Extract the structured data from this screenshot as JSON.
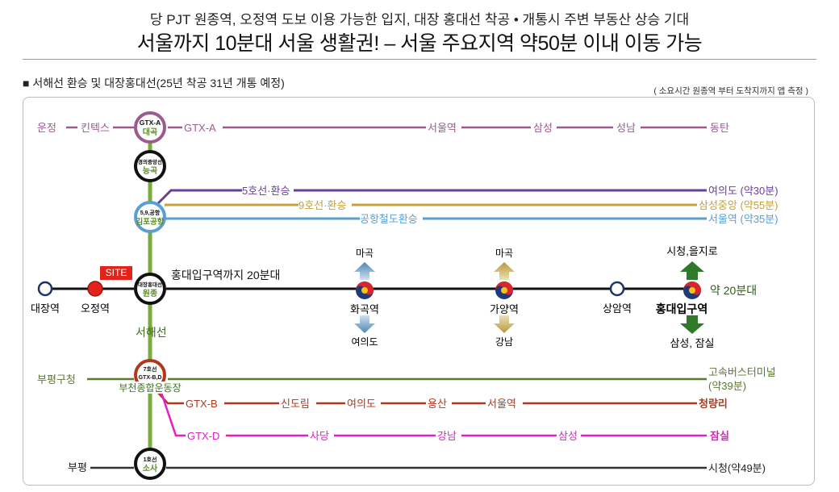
{
  "header": {
    "line1": "당 PJT 원종역, 오정역 도보 이용 가능한 입지, 대장 홍대선 착공 • 개통시 주변 부동산 상승 기대",
    "line2": "서울까지 10분대 서울 생활권! – 서울 주요지역 약50분 이내 이동 가능"
  },
  "section": {
    "title": "■ 서해선 환승 및 대장홍대선(25년 착공 31년 개통 예정)",
    "note": "( 소요시간 원종역 부터 도착지까지 앱 측정 )"
  },
  "hubs": {
    "daegok_top": "GTX-A",
    "daegok_bot": "대곡",
    "neunggok_top": "경의중앙선",
    "neunggok_bot": "능곡",
    "gimpo_top": "5,9,공항",
    "gimpo_bot": "김포공항",
    "wonjong_top": "대장홍대선",
    "wonjong_bot": "원종",
    "bucheon_top1": "7호선",
    "bucheon_top2": "GTX-B,D",
    "sosa_top": "1호선",
    "sosa_bot": "소사"
  },
  "lines": {
    "gtxa": {
      "left1": "운정",
      "left2": "킨텍스",
      "name": "GTX-A",
      "s1": "서울역",
      "s2": "삼성",
      "s3": "성남",
      "end": "동탄",
      "color": "#9b5b8f"
    },
    "l5": {
      "name": "5호선·환승",
      "end": "여의도 (약30분)",
      "color": "#6a3f9a"
    },
    "l9": {
      "name": "9호선·환승",
      "end": "삼성중앙 (약55분)",
      "color": "#c4a13d"
    },
    "airport": {
      "name": "공항철도환승",
      "end": "서울역 (약35분)",
      "color": "#5a9fd3"
    },
    "seohae": {
      "name": "서해선",
      "color": "#7aab3e"
    },
    "l7": {
      "left": "부평구청",
      "end": "고속버스터미널",
      "end2": "(약39분)",
      "station": "부천종합운동장",
      "color": "#5c7a2b"
    },
    "gtxb": {
      "name": "GTX-B",
      "s1": "신도림",
      "s2": "여의도",
      "s3": "용산",
      "s4": "서울역",
      "end": "청량리",
      "color": "#b0391d"
    },
    "gtxd": {
      "name": "GTX-D",
      "s1": "사당",
      "s2": "강남",
      "s3": "삼성",
      "end": "잠실",
      "color": "#e41ec8"
    },
    "l1": {
      "left": "부평",
      "end": "시청(약49분)",
      "color": "#333333"
    }
  },
  "daejang": {
    "site": "SITE",
    "s_daejang": "대장역",
    "s_ojeong": "오정역",
    "desc": "홍대입구역까지 20분대",
    "s_hwagok": "화곡역",
    "hwagok_up": "마곡",
    "hwagok_down": "여의도",
    "s_gayang": "가양역",
    "gayang_up": "마곡",
    "gayang_down": "강남",
    "s_sangam": "상암역",
    "s_hongdae": "홍대입구역",
    "hongdae_up": "시청,을지로",
    "hongdae_down": "삼성, 잠실",
    "time": "약 20분대",
    "color": "#111111"
  }
}
